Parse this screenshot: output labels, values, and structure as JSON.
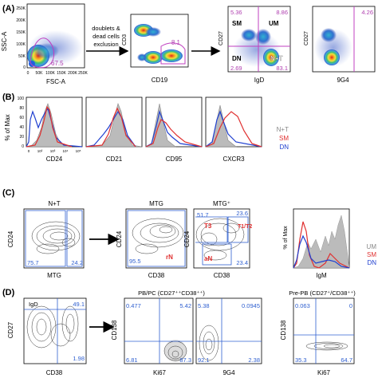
{
  "panel_A": {
    "label": "(A)",
    "plot1": {
      "y_label": "SSC-A",
      "x_label": "FSC-A",
      "gate_value": "67.5",
      "y_ticks": [
        "250K",
        "200K",
        "150K",
        "100K",
        "50K",
        "0"
      ],
      "x_ticks": [
        "0",
        "50K",
        "100K",
        "150K",
        "200K",
        "250K"
      ]
    },
    "arrow_text_1": "doublets &",
    "arrow_text_2": "dead cells",
    "arrow_text_3": "exclusion",
    "plot2": {
      "y_label": "CD3",
      "x_label": "CD19",
      "gate_value": "8.1"
    },
    "plot3": {
      "y_label": "CD27",
      "x_label": "IgD",
      "q_tl": "5.36",
      "q_tr": "8.86",
      "q_bl": "2.69",
      "q_br": "83.1",
      "lab_sm": "SM",
      "lab_um": "UM",
      "lab_dn": "DN",
      "lab_nt": "N+T"
    },
    "plot4": {
      "y_label": "CD27",
      "x_label": "9G4",
      "gate_value": "4.26"
    }
  },
  "panel_B": {
    "label": "(B)",
    "y_label": "% of Max",
    "y_ticks": [
      "100",
      "80",
      "60",
      "40",
      "20",
      "0"
    ],
    "plots": [
      {
        "x_label": "CD24"
      },
      {
        "x_label": "CD21"
      },
      {
        "x_label": "CD95"
      },
      {
        "x_label": "CXCR3"
      }
    ],
    "legend": [
      {
        "name": "N+T",
        "color": "#888888"
      },
      {
        "name": "SM",
        "color": "#e03030"
      },
      {
        "name": "DN",
        "color": "#2040d0"
      }
    ],
    "x_ticks_cd24": [
      "0",
      "10²",
      "10³",
      "10⁴",
      "10⁵"
    ]
  },
  "panel_C": {
    "label": "(C)",
    "plot1": {
      "title": "N+T",
      "y_label": "CD24",
      "x_label": "MTG",
      "v1": "75.7",
      "v2": "24.2"
    },
    "plot2": {
      "title": "MTG",
      "y_label": "CD24",
      "x_label": "CD38",
      "v1": "95.5",
      "gate": "rN"
    },
    "plot3": {
      "title": "MTG⁺",
      "y_label": "CD24",
      "x_label": "CD38",
      "v1": "51.7",
      "v2": "23.6",
      "v3": "23.4",
      "g1": "T3",
      "g2": "T1/T2",
      "g3": "aN"
    },
    "plot4": {
      "y_label": "% of Max",
      "x_label": "IgM"
    },
    "legend": [
      {
        "name": "UM",
        "color": "#888888"
      },
      {
        "name": "SM",
        "color": "#e03030"
      },
      {
        "name": "DN",
        "color": "#2040d0"
      }
    ]
  },
  "panel_D": {
    "label": "(D)",
    "plot1": {
      "title": "IgD",
      "y_label": "CD27",
      "x_label": "CD38",
      "v1": "49.1",
      "v2": "1.98"
    },
    "plot2": {
      "title": "PB/PC (CD27⁺⁺CD38⁺⁺)",
      "y_label": "CD138",
      "x_label": "Ki67",
      "v1": "0.477",
      "v2": "5.42",
      "v3": "6.81",
      "v4": "87.3"
    },
    "plot3": {
      "x_label": "9G4",
      "v1": "5.38",
      "v2": "0.0945",
      "v3": "92.1",
      "v4": "2.38"
    },
    "plot4": {
      "title": "Pre-PB (CD27⁺/CD38⁺⁺)",
      "y_label": "CD138",
      "x_label": "Ki67",
      "v1": "0.063",
      "v2": "0",
      "v3": "35.3",
      "v4": "64.7"
    }
  }
}
